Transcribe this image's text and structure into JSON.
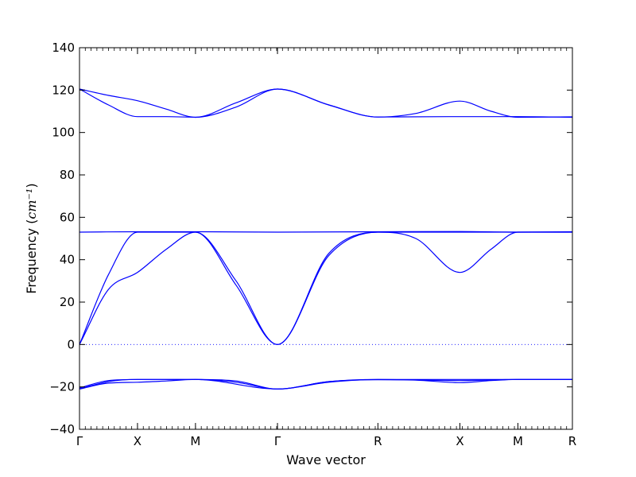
{
  "chart_data": {
    "type": "line",
    "xlabel": "Wave vector",
    "ylabel": "Frequency",
    "ylabel_unit": "cm⁻¹",
    "ylim": [
      -40,
      140
    ],
    "y_ticks": [
      -40,
      -20,
      0,
      20,
      40,
      60,
      80,
      100,
      120,
      140
    ],
    "x_range": [
      0,
      8.5
    ],
    "x_ticks": [
      {
        "label": "Γ",
        "x": 0
      },
      {
        "label": "X",
        "x": 1
      },
      {
        "label": "M",
        "x": 2
      },
      {
        "label": "Γ",
        "x": 3.414
      },
      {
        "label": "R",
        "x": 5.146
      },
      {
        "label": "X",
        "x": 6.56
      },
      {
        "label": "M",
        "x": 7.56
      },
      {
        "label": "R",
        "x": 8.5
      }
    ],
    "line_color": "#0000ff",
    "zero_line": true,
    "series": [
      {
        "points": [
          [
            0,
            120.5
          ],
          [
            0.5,
            117.5
          ],
          [
            1,
            115
          ],
          [
            1.5,
            111
          ],
          [
            2,
            107.2
          ],
          [
            2.7,
            114
          ],
          [
            3.414,
            120.5
          ],
          [
            4.3,
            113
          ],
          [
            5.146,
            107.3
          ],
          [
            5.8,
            109
          ],
          [
            6.56,
            114.8
          ],
          [
            7.1,
            110
          ],
          [
            7.56,
            107.2
          ],
          [
            8.5,
            107.4
          ]
        ]
      },
      {
        "points": [
          [
            0,
            120.5
          ],
          [
            0.5,
            113
          ],
          [
            1,
            107.5
          ],
          [
            1.5,
            107.5
          ],
          [
            2,
            107.2
          ],
          [
            2.7,
            112
          ],
          [
            3.414,
            120.5
          ],
          [
            4.3,
            113
          ],
          [
            5.146,
            107.3
          ],
          [
            6.56,
            107.5
          ],
          [
            7.56,
            107.5
          ],
          [
            8.5,
            107.2
          ]
        ]
      },
      {
        "points": [
          [
            0,
            53
          ],
          [
            1,
            53.2
          ],
          [
            2,
            53.2
          ],
          [
            3.414,
            53
          ],
          [
            5.146,
            53.2
          ],
          [
            6.56,
            53.3
          ],
          [
            7.56,
            53
          ],
          [
            8.5,
            53.2
          ]
        ]
      },
      {
        "points": [
          [
            0,
            0
          ],
          [
            0.5,
            33
          ],
          [
            1,
            53
          ],
          [
            2,
            53
          ],
          [
            2.7,
            28
          ],
          [
            3.414,
            0
          ],
          [
            4.3,
            42
          ],
          [
            5.146,
            53
          ],
          [
            6.56,
            53
          ],
          [
            7.56,
            53
          ],
          [
            8.5,
            53
          ]
        ]
      },
      {
        "points": [
          [
            0,
            0
          ],
          [
            0.5,
            26
          ],
          [
            1,
            34
          ],
          [
            1.5,
            45
          ],
          [
            2,
            53
          ],
          [
            2.7,
            30
          ],
          [
            3.414,
            0
          ],
          [
            4.3,
            43
          ],
          [
            5.146,
            53
          ],
          [
            5.8,
            50
          ],
          [
            6.56,
            34
          ],
          [
            7.1,
            45
          ],
          [
            7.56,
            53
          ],
          [
            8.5,
            53
          ]
        ]
      },
      {
        "points": [
          [
            0,
            -21
          ],
          [
            0.5,
            -18.2
          ],
          [
            1,
            -17.8
          ],
          [
            1.5,
            -17.2
          ],
          [
            2,
            -16.5
          ],
          [
            2.7,
            -17.8
          ],
          [
            3.414,
            -21
          ],
          [
            4.3,
            -17.5
          ],
          [
            5.146,
            -16.5
          ],
          [
            6.56,
            -17
          ],
          [
            7.56,
            -16.5
          ],
          [
            8.5,
            -16.5
          ]
        ]
      },
      {
        "points": [
          [
            0,
            -21
          ],
          [
            0.5,
            -17.5
          ],
          [
            1,
            -16.5
          ],
          [
            2,
            -16.5
          ],
          [
            2.7,
            -17.2
          ],
          [
            3.414,
            -21
          ],
          [
            4.3,
            -17.5
          ],
          [
            5.146,
            -16.6
          ],
          [
            5.8,
            -16.8
          ],
          [
            6.56,
            -18
          ],
          [
            7.1,
            -17
          ],
          [
            7.56,
            -16.5
          ],
          [
            8.5,
            -16.5
          ]
        ]
      },
      {
        "points": [
          [
            0,
            -20.5
          ],
          [
            0.5,
            -17
          ],
          [
            1,
            -16.5
          ],
          [
            2,
            -16.5
          ],
          [
            3.414,
            -21
          ],
          [
            4.3,
            -17.8
          ],
          [
            5.146,
            -16.5
          ],
          [
            8.5,
            -16.5
          ]
        ]
      }
    ]
  }
}
